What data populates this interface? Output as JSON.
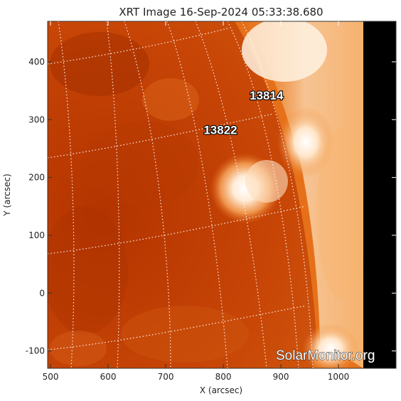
{
  "title": "XRT Image 16-Sep-2024 05:33:38.680",
  "xlabel": "X (arcsec)",
  "ylabel": "Y (arcsec)",
  "x_ticks": [
    "500",
    "600",
    "700",
    "800",
    "900",
    "1000"
  ],
  "y_ticks": [
    "-100",
    "0",
    "100",
    "200",
    "300",
    "400"
  ],
  "x_tick_values": [
    500,
    600,
    700,
    800,
    900,
    1000
  ],
  "y_tick_values": [
    -100,
    0,
    100,
    200,
    300,
    400
  ],
  "x_range": [
    495,
    1100
  ],
  "y_range": [
    -130,
    470
  ],
  "regions": [
    {
      "number": "13814",
      "x": 875,
      "y": 335
    },
    {
      "number": "13822",
      "x": 795,
      "y": 275
    }
  ],
  "watermark": "SolarMonitor.org",
  "colors": {
    "dark": "#a32a00",
    "mid": "#cc4a05",
    "bright": "#f08a30",
    "hot": "#fff3e6",
    "space": "#000000"
  }
}
